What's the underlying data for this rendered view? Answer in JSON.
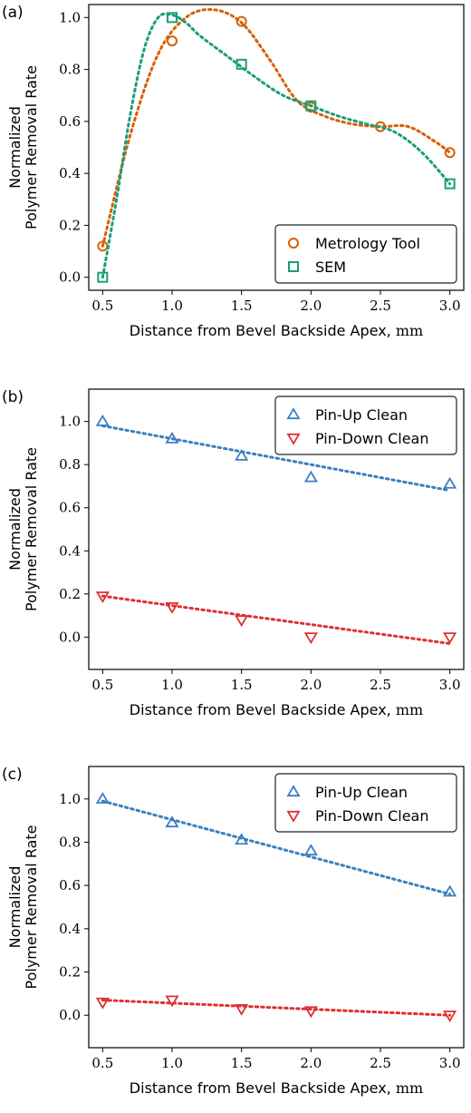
{
  "chart_data": [
    {
      "type": "scatter",
      "panel_label": "(a)",
      "xlabel_main": "Distance from Bevel Backside Apex,",
      "xlabel_unit": "mm",
      "ylabel_line1": "Normalized",
      "ylabel_line2": "Polymer Removal Rate",
      "xlim": [
        0.4,
        3.1
      ],
      "ylim": [
        -0.05,
        1.05
      ],
      "xticks": [
        "0.5",
        "1.0",
        "1.5",
        "2.0",
        "2.5",
        "3.0"
      ],
      "yticks": [
        "0.0",
        "0.2",
        "0.4",
        "0.6",
        "0.8",
        "1.0"
      ],
      "legend_position": "lower-right",
      "series": [
        {
          "name": "Metrology Tool",
          "color": "#d95f02",
          "marker": "circle",
          "x": [
            0.5,
            1.0,
            1.5,
            2.0,
            2.5,
            3.0
          ],
          "y": [
            0.12,
            0.91,
            0.985,
            0.655,
            0.58,
            0.48
          ],
          "fit_x": [
            0.5,
            0.7,
            0.9,
            1.1,
            1.3,
            1.5,
            1.7,
            1.9,
            2.1,
            2.3,
            2.5,
            2.7,
            2.9,
            3.0
          ],
          "fit_y": [
            0.12,
            0.55,
            0.86,
            1.0,
            1.03,
            0.98,
            0.84,
            0.68,
            0.62,
            0.59,
            0.58,
            0.58,
            0.52,
            0.48
          ]
        },
        {
          "name": "SEM",
          "color": "#1b9e77",
          "marker": "square",
          "x": [
            0.5,
            1.0,
            1.5,
            2.0,
            3.0
          ],
          "y": [
            0.0,
            1.0,
            0.82,
            0.66,
            0.36
          ],
          "fit_x": [
            0.5,
            0.6,
            0.7,
            0.8,
            0.9,
            1.0,
            1.1,
            1.2,
            1.4,
            1.6,
            1.8,
            2.0,
            2.2,
            2.4,
            2.6,
            2.8,
            3.0
          ],
          "fit_y": [
            0.0,
            0.3,
            0.63,
            0.88,
            1.0,
            1.01,
            0.98,
            0.93,
            0.85,
            0.77,
            0.7,
            0.66,
            0.62,
            0.59,
            0.56,
            0.48,
            0.36
          ]
        }
      ]
    },
    {
      "type": "scatter",
      "panel_label": "(b)",
      "xlabel_main": "Distance from Bevel Backside Apex,",
      "xlabel_unit": "mm",
      "ylabel_line1": "Normalized",
      "ylabel_line2": "Polymer Removal Rate",
      "xlim": [
        0.4,
        3.1
      ],
      "ylim": [
        -0.15,
        1.15
      ],
      "xticks": [
        "0.5",
        "1.0",
        "1.5",
        "2.0",
        "2.5",
        "3.0"
      ],
      "yticks": [
        "0.0",
        "0.2",
        "0.4",
        "0.6",
        "0.8",
        "1.0"
      ],
      "legend_position": "top-right",
      "series": [
        {
          "name": "Pin-Up Clean",
          "color": "#3a7fc1",
          "marker": "triangle-up",
          "x": [
            0.5,
            1.0,
            1.5,
            2.0,
            3.0
          ],
          "y": [
            1.0,
            0.92,
            0.84,
            0.74,
            0.71
          ],
          "fit_x": [
            0.5,
            3.0
          ],
          "fit_y": [
            0.98,
            0.68
          ]
        },
        {
          "name": "Pin-Down Clean",
          "color": "#e03030",
          "marker": "triangle-down",
          "x": [
            0.5,
            1.0,
            1.5,
            2.0,
            3.0
          ],
          "y": [
            0.19,
            0.14,
            0.08,
            0.0,
            0.0
          ],
          "fit_x": [
            0.5,
            3.0
          ],
          "fit_y": [
            0.19,
            -0.03
          ]
        }
      ]
    },
    {
      "type": "scatter",
      "panel_label": "(c)",
      "xlabel_main": "Distance from Bevel Backside Apex,",
      "xlabel_unit": "mm",
      "ylabel_line1": "Normalized",
      "ylabel_line2": "Polymer Removal Rate",
      "xlim": [
        0.4,
        3.1
      ],
      "ylim": [
        -0.15,
        1.15
      ],
      "xticks": [
        "0.5",
        "1.0",
        "1.5",
        "2.0",
        "2.5",
        "3.0"
      ],
      "yticks": [
        "0.0",
        "0.2",
        "0.4",
        "0.6",
        "0.8",
        "1.0"
      ],
      "legend_position": "top-right",
      "series": [
        {
          "name": "Pin-Up Clean",
          "color": "#3a7fc1",
          "marker": "triangle-up",
          "x": [
            0.5,
            1.0,
            1.5,
            2.0,
            3.0
          ],
          "y": [
            1.0,
            0.89,
            0.81,
            0.76,
            0.57
          ],
          "fit_x": [
            0.5,
            3.0
          ],
          "fit_y": [
            0.99,
            0.56
          ]
        },
        {
          "name": "Pin-Down Clean",
          "color": "#e03030",
          "marker": "triangle-down",
          "x": [
            0.5,
            1.0,
            1.5,
            2.0,
            3.0
          ],
          "y": [
            0.06,
            0.07,
            0.03,
            0.02,
            0.0
          ],
          "fit_x": [
            0.5,
            3.0
          ],
          "fit_y": [
            0.07,
            0.0
          ]
        }
      ]
    }
  ]
}
